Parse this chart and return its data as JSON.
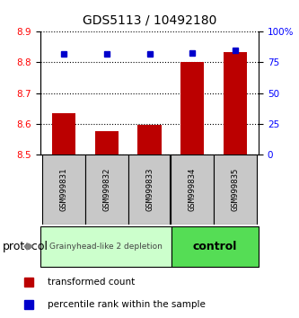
{
  "title": "GDS5113 / 10492180",
  "samples": [
    "GSM999831",
    "GSM999832",
    "GSM999833",
    "GSM999834",
    "GSM999835"
  ],
  "bar_values": [
    8.635,
    8.575,
    8.595,
    8.8,
    8.835
  ],
  "blue_values": [
    82,
    82,
    82,
    83,
    85
  ],
  "ylim": [
    8.5,
    8.9
  ],
  "yticks_left": [
    8.5,
    8.6,
    8.7,
    8.8,
    8.9
  ],
  "yticks_right": [
    0,
    25,
    50,
    75,
    100
  ],
  "ytick_labels_right": [
    "0",
    "25",
    "50",
    "75",
    "100%"
  ],
  "bar_color": "#BB0000",
  "blue_color": "#0000CC",
  "group1_label": "Grainyhead-like 2 depletion",
  "group2_label": "control",
  "group1_color": "#CCFFCC",
  "group2_color": "#55DD55",
  "group1_indices": [
    0,
    1,
    2
  ],
  "group2_indices": [
    3,
    4
  ],
  "protocol_label": "protocol",
  "legend_bar_label": "transformed count",
  "legend_dot_label": "percentile rank within the sample",
  "bar_width": 0.55,
  "title_fontsize": 10,
  "tick_fontsize": 7.5
}
